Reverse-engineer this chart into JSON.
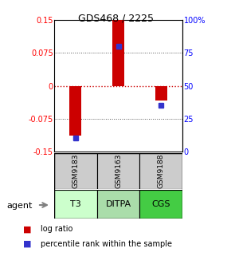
{
  "title": "GDS468 / 2225",
  "samples": [
    "GSM9183",
    "GSM9163",
    "GSM9188"
  ],
  "agents": [
    "T3",
    "DITPA",
    "CGS"
  ],
  "log_ratios": [
    -0.113,
    0.15,
    -0.033
  ],
  "percentile_ranks": [
    10,
    80,
    35
  ],
  "ylim": [
    -0.15,
    0.15
  ],
  "yticks_left": [
    -0.15,
    -0.075,
    0,
    0.075,
    0.15
  ],
  "yticks_right": [
    0,
    25,
    50,
    75,
    100
  ],
  "bar_color": "#cc0000",
  "dot_color": "#3333cc",
  "zero_line_color": "#cc0000",
  "grid_color": "#555555",
  "agent_colors": [
    "#ccffcc",
    "#aaddaa",
    "#44cc44"
  ],
  "sample_box_color": "#cccccc",
  "title_fontsize": 9,
  "tick_fontsize": 7,
  "agent_fontsize": 8,
  "sample_fontsize": 6.5,
  "legend_fontsize": 7
}
